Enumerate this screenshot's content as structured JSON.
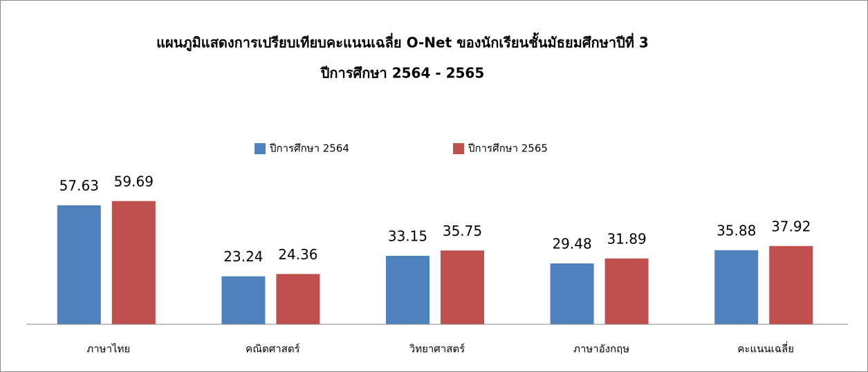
{
  "chart_data": {
    "type": "bar",
    "title": "แผนภูมิแสดงการเปรียบเทียบคะแนนเฉลี่ย O-Net ของนักเรียนชั้นมัธยมศึกษาปีที่ 3",
    "subtitle": "ปีการศึกษา 2564 - 2565",
    "categories": [
      "ภาษาไทย",
      "คณิตศาสตร์",
      "วิทยาศาสตร์",
      "ภาษาอังกฤษ",
      "คะแนนเฉลี่ย"
    ],
    "series": [
      {
        "name": "ปีการศึกษา 2564",
        "color": "#4f81bd",
        "values": [
          57.63,
          23.24,
          33.15,
          29.48,
          35.88
        ]
      },
      {
        "name": "ปีการศึกษา 2565",
        "color": "#c0504d",
        "values": [
          59.69,
          24.36,
          35.75,
          31.89,
          37.92
        ]
      }
    ],
    "ylim": [
      0,
      70
    ]
  }
}
